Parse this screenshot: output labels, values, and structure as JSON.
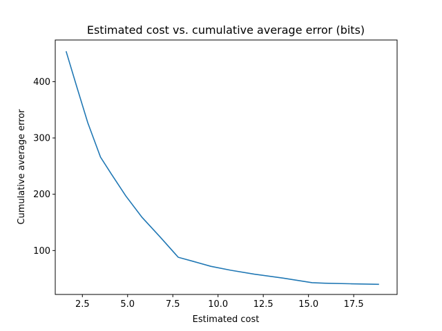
{
  "chart_data": {
    "type": "line",
    "title": "Estimated cost vs. cumulative average error (bits)",
    "xlabel": "Estimated cost",
    "ylabel": "Cumulative average error",
    "xlim": [
      1.0,
      19.9
    ],
    "ylim": [
      22,
      474
    ],
    "xticks": [
      2.5,
      5.0,
      7.5,
      10.0,
      12.5,
      15.0,
      17.5
    ],
    "xtick_labels": [
      "2.5",
      "5.0",
      "7.5",
      "10.0",
      "12.5",
      "15.0",
      "17.5"
    ],
    "yticks": [
      100,
      200,
      300,
      400
    ],
    "ytick_labels": [
      "100",
      "200",
      "300",
      "400"
    ],
    "grid": false,
    "series": [
      {
        "color": "#1f77b4",
        "x": [
          1.6,
          2.2,
          2.8,
          3.5,
          4.1,
          4.9,
          5.8,
          6.8,
          7.8,
          8.6,
          9.6,
          10.7,
          12.0,
          13.6,
          15.2,
          15.9,
          17.3,
          18.9
        ],
        "y": [
          454,
          390,
          327,
          266,
          236,
          197,
          159,
          124,
          88,
          81,
          72,
          65,
          58,
          51,
          43,
          42,
          41,
          40
        ]
      }
    ]
  }
}
